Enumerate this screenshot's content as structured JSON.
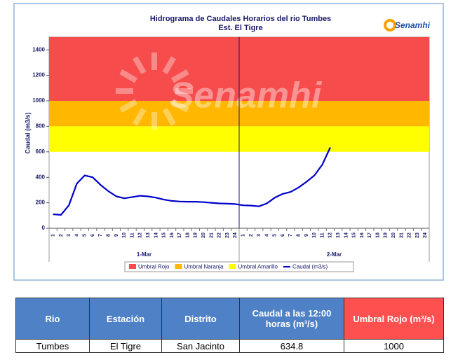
{
  "chart_data": {
    "type": "line",
    "title": "Hidrograma de Caudales Horarios del rio Tumbes",
    "subtitle": "Est. El Tigre",
    "y_label": "Caudal  (m3/s)",
    "watermark": "Senamhi",
    "logo": "Senamhi",
    "groups": [
      "1-Mar",
      "2-Mar"
    ],
    "categories": [
      "1",
      "2",
      "3",
      "4",
      "5",
      "6",
      "7",
      "8",
      "9",
      "10",
      "11",
      "12",
      "13",
      "14",
      "15",
      "16",
      "17",
      "18",
      "19",
      "20",
      "21",
      "22",
      "23",
      "24",
      "1",
      "2",
      "3",
      "4",
      "5",
      "6",
      "7",
      "8",
      "9",
      "10",
      "11",
      "12",
      "13",
      "14",
      "15",
      "16",
      "17",
      "18",
      "19",
      "20",
      "21",
      "22",
      "23",
      "24"
    ],
    "bands": [
      {
        "name": "Umbral Rojo",
        "color": "#f64c4c",
        "from": 1000,
        "to": 1500
      },
      {
        "name": "Umbral Naranja",
        "color": "#ffb700",
        "from": 800,
        "to": 1000
      },
      {
        "name": "Umbral Amarillo",
        "color": "#ffff00",
        "from": 600,
        "to": 800
      }
    ],
    "series": [
      {
        "name": "Caudal (m3/s)",
        "color": "#0000cc",
        "values": [
          110,
          105,
          180,
          350,
          415,
          400,
          340,
          290,
          250,
          235,
          245,
          255,
          250,
          240,
          225,
          215,
          210,
          208,
          208,
          205,
          200,
          195,
          193,
          190,
          180,
          178,
          172,
          195,
          240,
          270,
          285,
          320,
          365,
          415,
          500,
          634.8,
          null,
          null,
          null,
          null,
          null,
          null,
          null,
          null,
          null,
          null,
          null,
          null
        ]
      }
    ],
    "ylim": [
      0,
      1500
    ],
    "yticks": [
      0,
      200,
      400,
      600,
      800,
      1000,
      1200,
      1400
    ]
  },
  "table": {
    "headers": [
      "Rio",
      "Estación",
      "Distrito",
      "Caudal a las 12:00 horas (m³/s)",
      "Umbral Rojo (m³/s)"
    ],
    "rows": [
      [
        "Tumbes",
        "El Tigre",
        "San Jacinto",
        "634.8",
        "1000"
      ]
    ]
  }
}
